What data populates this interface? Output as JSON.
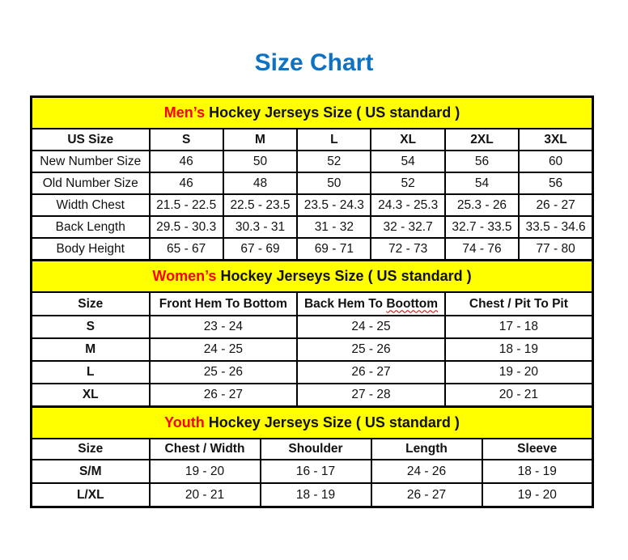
{
  "page": {
    "title": "Size Chart"
  },
  "colors": {
    "title_blue": "#0e72c4",
    "band_yellow": "#ffff00",
    "accent_red": "#ff0000",
    "border_black": "#000000"
  },
  "men": {
    "band": {
      "highlight": "Men’s",
      "rest": " Hockey Jerseys Size ( US standard )"
    },
    "columns": [
      "US Size",
      "S",
      "M",
      "L",
      "XL",
      "2XL",
      "3XL"
    ],
    "rows": [
      [
        "New Number Size",
        "46",
        "50",
        "52",
        "54",
        "56",
        "60"
      ],
      [
        "Old Number Size",
        "46",
        "48",
        "50",
        "52",
        "54",
        "56"
      ],
      [
        "Width Chest",
        "21.5 - 22.5",
        "22.5 - 23.5",
        "23.5 - 24.3",
        "24.3 - 25.3",
        "25.3 - 26",
        "26 - 27"
      ],
      [
        "Back Length",
        "29.5 - 30.3",
        "30.3 - 31",
        "31 - 32",
        "32 - 32.7",
        "32.7 - 33.5",
        "33.5 - 34.6"
      ],
      [
        "Body Height",
        "65 - 67",
        "67 - 69",
        "69 - 71",
        "72 - 73",
        "74 - 76",
        "77 - 80"
      ]
    ]
  },
  "women": {
    "band": {
      "highlight": "Women’s",
      "rest": " Hockey Jerseys Size ( US standard )"
    },
    "columns": [
      "Size",
      "Front Hem To Bottom",
      {
        "prefix": "Back Hem To ",
        "squiggle": "Boottom"
      },
      "Chest / Pit To Pit"
    ],
    "rows": [
      [
        "S",
        "23 - 24",
        "24 - 25",
        "17 - 18"
      ],
      [
        "M",
        "24 - 25",
        "25 - 26",
        "18 - 19"
      ],
      [
        "L",
        "25 - 26",
        "26 - 27",
        "19 - 20"
      ],
      [
        "XL",
        "26 - 27",
        "27 - 28",
        "20 - 21"
      ]
    ]
  },
  "youth": {
    "band": {
      "highlight": "Youth",
      "rest": " Hockey Jerseys Size ( US standard )"
    },
    "columns": [
      "Size",
      "Chest / Width",
      "Shoulder",
      "Length",
      "Sleeve"
    ],
    "rows": [
      [
        "S/M",
        "19 - 20",
        "16 - 17",
        "24 - 26",
        "18 - 19"
      ],
      [
        "L/XL",
        "20 - 21",
        "18 - 19",
        "26 - 27",
        "19 - 20"
      ]
    ]
  }
}
